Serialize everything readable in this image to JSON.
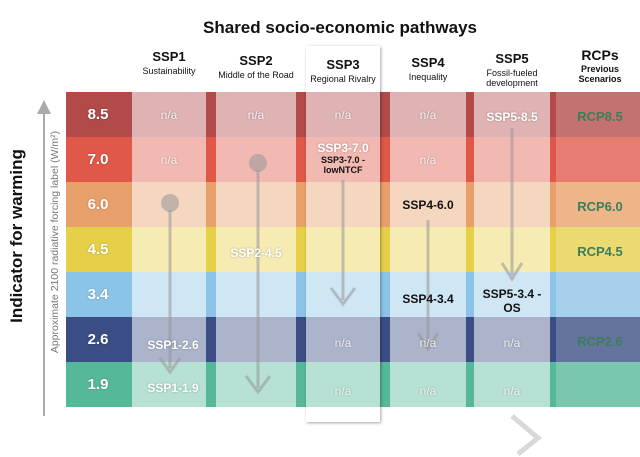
{
  "title": "Shared socio-economic pathways",
  "y_axis": {
    "label": "Indicator for warming",
    "sublabel": "Approximate 2100 radiative forcing label (W/m²)"
  },
  "levels": [
    {
      "value": "8.5",
      "color": "#b24a4a"
    },
    {
      "value": "7.0",
      "color": "#e0584a"
    },
    {
      "value": "6.0",
      "color": "#e8a06a"
    },
    {
      "value": "4.5",
      "color": "#e6d04a"
    },
    {
      "value": "3.4",
      "color": "#8cc4e8"
    },
    {
      "value": "2.6",
      "color": "#3a4d84"
    },
    {
      "value": "1.9",
      "color": "#55b89a"
    }
  ],
  "pathways": [
    {
      "name": "SSP1",
      "subtitle": "Sustainability"
    },
    {
      "name": "SSP2",
      "subtitle": "Middle of the Road"
    },
    {
      "name": "SSP3",
      "subtitle": "Regional Rivalry"
    },
    {
      "name": "SSP4",
      "subtitle": "Inequality"
    },
    {
      "name": "SSP5",
      "subtitle": "Fossil-fueled development"
    }
  ],
  "rcp_header": {
    "name": "RCPs",
    "subtitle": "Previous Scenarios"
  },
  "na_text": "n/a",
  "scenarios": {
    "ssp1_26": "SSP1-2.6",
    "ssp1_19": "SSP1-1.9",
    "ssp2_45": "SSP2-4.5",
    "ssp3_70": "SSP3-7.0",
    "ssp3_70_lowntcf": "SSP3-7.0 -lowNTCF",
    "ssp4_60": "SSP4-6.0",
    "ssp4_34": "SSP4-3.4",
    "ssp5_85": "SSP5-8.5",
    "ssp5_34_os": "SSP5-3.4 -OS"
  },
  "rcps": {
    "rcp85": "RCP8.5",
    "rcp60": "RCP6.0",
    "rcp45": "RCP4.5",
    "rcp26": "RCP2.6"
  }
}
